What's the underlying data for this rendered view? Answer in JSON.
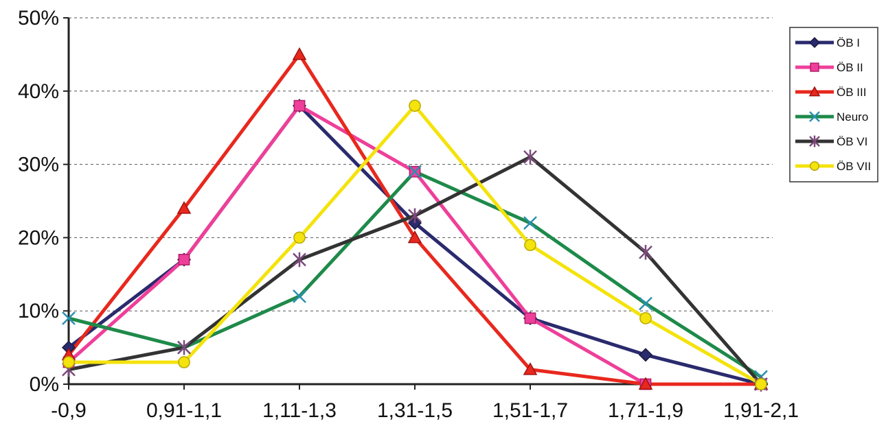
{
  "chart_data": {
    "type": "line",
    "categories": [
      "-0,9",
      "0,91-1,1",
      "1,11-1,3",
      "1,31-1,5",
      "1,51-1,7",
      "1,71-1,9",
      "1,91-2,1"
    ],
    "ylim": [
      0,
      50
    ],
    "ytick_labels": [
      "0%",
      "10%",
      "20%",
      "30%",
      "40%",
      "50%"
    ],
    "grid": "horizontal dashed",
    "legend_position": "right",
    "series": [
      {
        "name": "ÖB I",
        "color": "#2a2a6e",
        "marker": "diamond",
        "values": [
          5,
          17,
          38,
          22,
          9,
          4,
          0
        ]
      },
      {
        "name": "ÖB II",
        "color": "#ee3f9a",
        "marker": "square",
        "values": [
          3,
          17,
          38,
          29,
          9,
          0,
          0
        ]
      },
      {
        "name": "ÖB III",
        "color": "#e8281e",
        "marker": "triangle",
        "values": [
          4,
          24,
          45,
          20,
          2,
          0,
          0
        ]
      },
      {
        "name": "Neuro",
        "color": "#1e8a4a",
        "marker": "x",
        "values": [
          9,
          5,
          12,
          29,
          22,
          11,
          1
        ]
      },
      {
        "name": "ÖB VI",
        "color": "#333333",
        "marker": "star",
        "values": [
          2,
          5,
          17,
          23,
          31,
          18,
          0
        ]
      },
      {
        "name": "ÖB VII",
        "color": "#f4e30c",
        "marker": "circle",
        "values": [
          3,
          3,
          20,
          38,
          19,
          9,
          0
        ]
      }
    ]
  }
}
